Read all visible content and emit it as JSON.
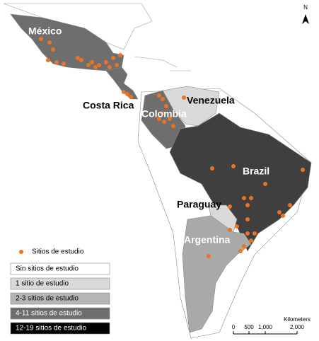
{
  "map": {
    "labels": [
      "México",
      "Costa Rica",
      "Colombia",
      "Venezuela",
      "Brazil",
      "Paraguay",
      "Argentina"
    ],
    "north": "N",
    "legend": [
      {
        "label": "Sitios de estudio",
        "color": "#e8742a"
      },
      {
        "label": "Sin sitios de estudio",
        "color": "#ffffff"
      },
      {
        "label": "1 sitio de estudio",
        "color": "#d9d9d9"
      },
      {
        "label": "2-3 sitios de estudio",
        "color": "#b5b5b5"
      },
      {
        "label": "4-11 sitios de estudio",
        "color": "#6e6e6e"
      },
      {
        "label": "12-19 sitios de estudio",
        "color": "#000000"
      }
    ],
    "scale": {
      "title": "Kilometers",
      "ticks": [
        "0",
        "500",
        "1,000",
        "2,000"
      ]
    }
  }
}
